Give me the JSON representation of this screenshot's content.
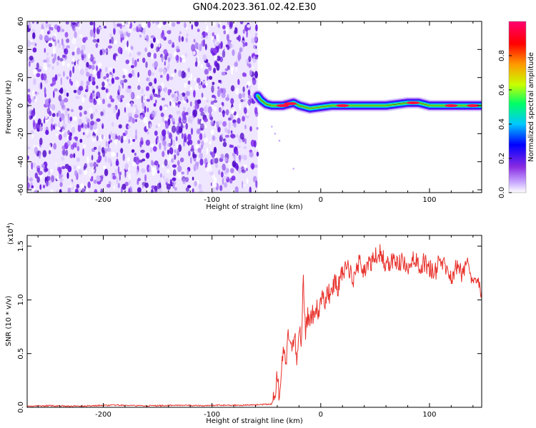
{
  "title": "GN04.2023.361.02.42.E30",
  "colors": {
    "snr_line": "#e8322c",
    "axis": "#000000",
    "noise_purple": "#7a2ce0",
    "colormap": [
      "#ffffff",
      "#c8a8ff",
      "#8a2be2",
      "#0000ff",
      "#00c8ff",
      "#00ff66",
      "#c8ff00",
      "#ff9900",
      "#ff0000",
      "#ff0070"
    ]
  },
  "chart_data": [
    {
      "type": "heatmap",
      "xlabel": "Height of straight line (km)",
      "ylabel": "Frequency (Hz)",
      "xlim": [
        -270,
        148
      ],
      "ylim": [
        -62,
        60
      ],
      "x_ticks": [
        -200,
        -100,
        0,
        100
      ],
      "x_tick_labels": [
        "-200",
        "-100",
        "0",
        "100"
      ],
      "y_ticks": [
        -60,
        -40,
        -20,
        0,
        20,
        40,
        60
      ],
      "y_tick_labels": [
        "-60",
        "-40",
        "-20",
        "0",
        "20",
        "40",
        "60"
      ],
      "noise_region_x": [
        -270,
        -58
      ],
      "signal_track": {
        "x": [
          -58,
          -55,
          -50,
          -45,
          -40,
          -35,
          -30,
          -25,
          -20,
          -15,
          -10,
          0,
          10,
          20,
          30,
          40,
          50,
          60,
          70,
          80,
          90,
          100,
          110,
          120,
          130,
          140,
          148
        ],
        "y": [
          7,
          4,
          1,
          0,
          0,
          0,
          1,
          2,
          0,
          -1,
          -2,
          -1,
          0,
          0,
          0,
          0,
          0,
          0,
          1,
          2,
          2,
          0,
          0,
          0,
          0,
          0,
          0
        ]
      },
      "colorbar": {
        "label": "Normalized spectral amplitude",
        "range": [
          0,
          1
        ],
        "ticks": [
          0.0,
          0.2,
          0.4,
          0.6,
          0.8
        ],
        "tick_labels": [
          "0.0",
          "0.2",
          "0.4",
          "0.6",
          "0.8"
        ]
      }
    },
    {
      "type": "line",
      "xlabel": "Height of straight line (km)",
      "ylabel": "SNR (10 * v/v)",
      "scale_label_base": "(x10",
      "scale_label_exp": "4",
      "scale_label_close": ")",
      "xlim": [
        -270,
        148
      ],
      "ylim": [
        0,
        1.6
      ],
      "x_ticks": [
        -200,
        -100,
        0,
        100
      ],
      "x_tick_labels": [
        "-200",
        "-100",
        "0",
        "100"
      ],
      "y_ticks": [
        0.0,
        0.5,
        1.0,
        1.5
      ],
      "y_tick_labels": [
        "0.0",
        "0.5",
        "1.0",
        "1.5"
      ],
      "series": [
        {
          "x": [
            -270,
            -250,
            -230,
            -210,
            -190,
            -170,
            -150,
            -130,
            -110,
            -90,
            -70,
            -55,
            -45,
            -42,
            -40,
            -38,
            -36,
            -34,
            -32,
            -30,
            -28,
            -26,
            -24,
            -22,
            -20,
            -18,
            -16,
            -14,
            -12,
            -10,
            -8,
            -6,
            -4,
            -2,
            0,
            2,
            4,
            6,
            8,
            10,
            12,
            14,
            16,
            18,
            20,
            25,
            30,
            35,
            40,
            45,
            50,
            55,
            60,
            65,
            70,
            75,
            80,
            85,
            90,
            95,
            100,
            105,
            110,
            115,
            120,
            125,
            130,
            135,
            140,
            145,
            148
          ],
          "y": [
            0.01,
            0.015,
            0.01,
            0.015,
            0.02,
            0.015,
            0.015,
            0.02,
            0.015,
            0.02,
            0.02,
            0.025,
            0.03,
            0.15,
            0.3,
            0.08,
            0.35,
            0.55,
            0.4,
            0.65,
            0.6,
            0.5,
            0.7,
            0.45,
            0.75,
            0.62,
            1.2,
            0.7,
            0.85,
            0.75,
            0.9,
            0.82,
            0.95,
            0.88,
            1.0,
            1.05,
            0.98,
            1.1,
            1.05,
            1.15,
            1.12,
            1.18,
            1.1,
            1.22,
            1.25,
            1.3,
            1.2,
            1.35,
            1.28,
            1.32,
            1.4,
            1.45,
            1.3,
            1.38,
            1.32,
            1.36,
            1.25,
            1.42,
            1.3,
            1.35,
            1.3,
            1.25,
            1.38,
            1.28,
            1.22,
            1.3,
            1.25,
            1.35,
            1.2,
            1.22,
            1.08
          ]
        }
      ]
    }
  ]
}
